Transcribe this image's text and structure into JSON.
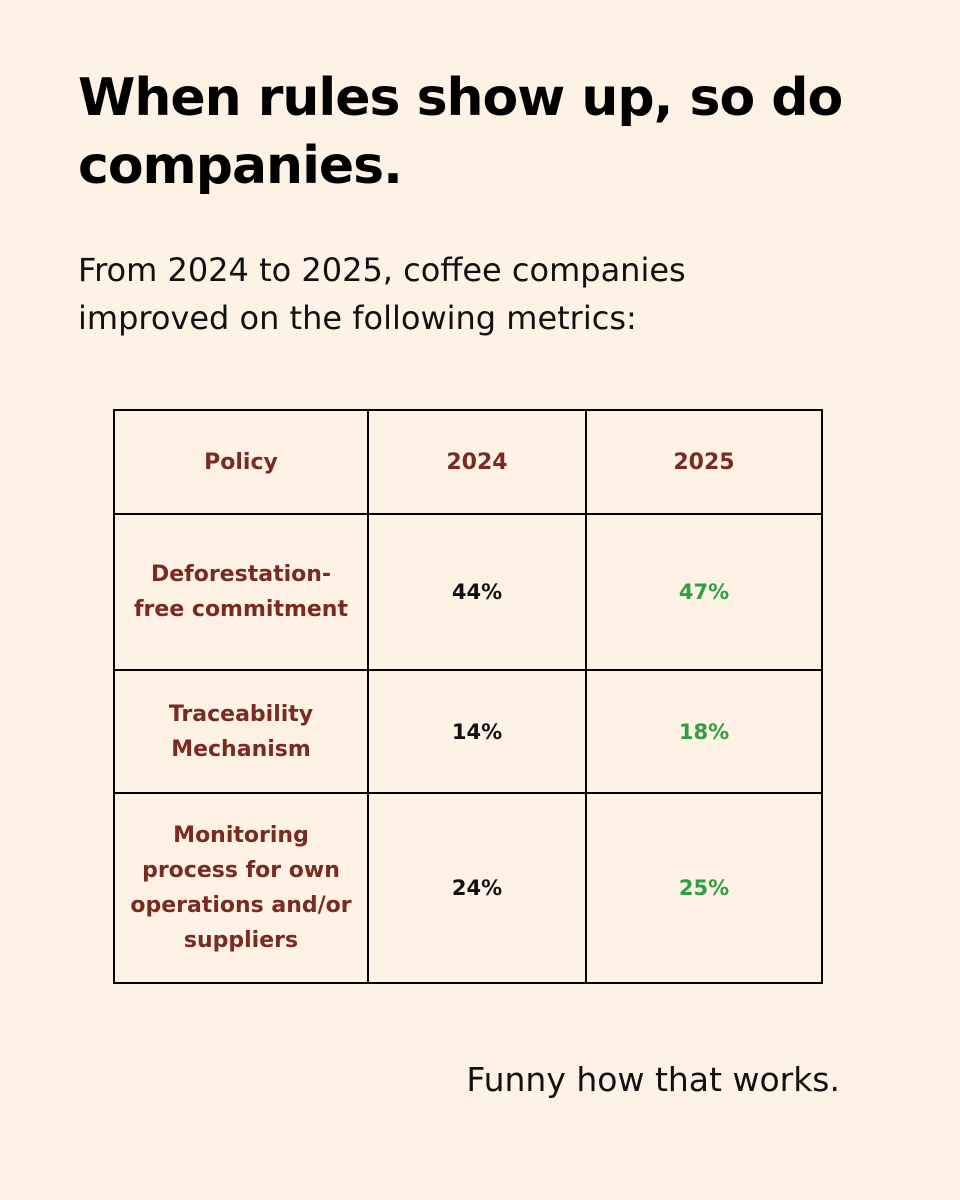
{
  "headline": "When rules show up, so do companies.",
  "subtitle": "From 2024 to 2025, coffee companies improved on the following metrics:",
  "table": {
    "headers": {
      "policy": "Policy",
      "year_a": "2024",
      "year_b": "2025"
    },
    "rows": [
      {
        "policy": "Deforestation-free commitment",
        "year_a": "44%",
        "year_b": "47%"
      },
      {
        "policy": "Traceability Mechanism",
        "year_a": "14%",
        "year_b": "18%"
      },
      {
        "policy": "Monitoring process for own operations and/or suppliers",
        "year_a": "24%",
        "year_b": "25%"
      }
    ]
  },
  "footer": "Funny how that works.",
  "colors": {
    "background": "#fdf2e4",
    "label_color": "#7b2a22",
    "improved_color": "#2ea043",
    "text_color": "#111111"
  }
}
